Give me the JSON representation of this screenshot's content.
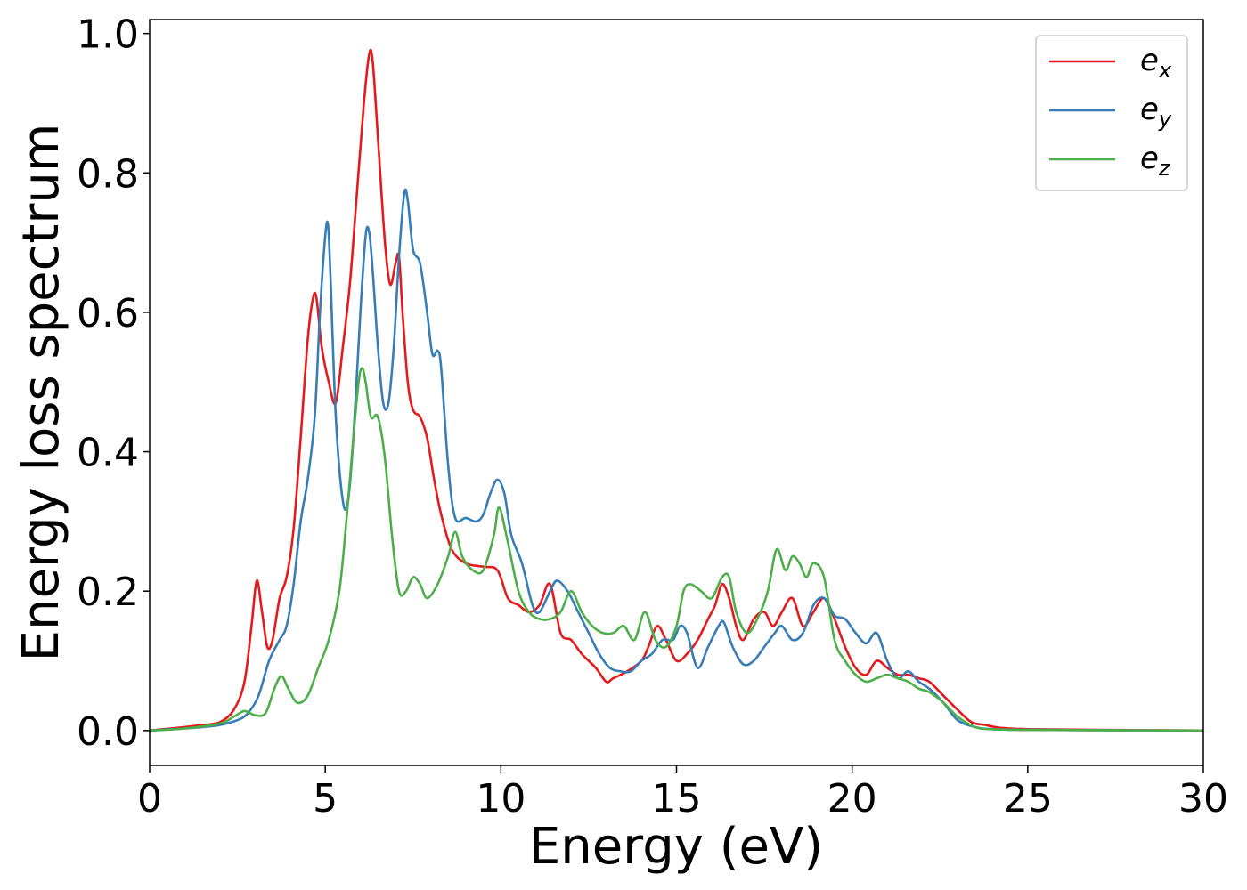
{
  "chart_data": {
    "type": "line",
    "title": "",
    "xlabel": "Energy (eV)",
    "ylabel": "Energy loss spectrum",
    "xlim": [
      0,
      30
    ],
    "ylim": [
      -0.05,
      1.02
    ],
    "xticks": [
      0,
      5,
      10,
      15,
      20,
      25,
      30
    ],
    "yticks": [
      0.0,
      0.2,
      0.4,
      0.6,
      0.8,
      1.0
    ],
    "xtick_labels": [
      "0",
      "5",
      "10",
      "15",
      "20",
      "25",
      "30"
    ],
    "ytick_labels": [
      "0.0",
      "0.2",
      "0.4",
      "0.6",
      "0.8",
      "1.0"
    ],
    "grid": false,
    "legend_position": "top-right",
    "series": [
      {
        "name": "e",
        "subscript": "x",
        "color": "#e41a1c",
        "x": [
          0,
          1,
          1.5,
          2,
          2.4,
          2.7,
          2.9,
          3.05,
          3.2,
          3.35,
          3.5,
          3.7,
          3.9,
          4.1,
          4.3,
          4.5,
          4.65,
          4.75,
          4.9,
          5.1,
          5.3,
          5.5,
          5.7,
          5.9,
          6.1,
          6.25,
          6.35,
          6.5,
          6.7,
          6.85,
          7.0,
          7.1,
          7.2,
          7.35,
          7.5,
          7.7,
          7.9,
          8.1,
          8.3,
          8.6,
          9.0,
          9.5,
          9.9,
          10.2,
          10.5,
          10.8,
          11.1,
          11.4,
          11.7,
          12.0,
          12.3,
          12.7,
          13.0,
          13.2,
          13.6,
          14.0,
          14.2,
          14.45,
          14.7,
          15.0,
          15.3,
          15.6,
          15.9,
          16.1,
          16.3,
          16.5,
          16.7,
          16.9,
          17.2,
          17.5,
          17.75,
          18.0,
          18.3,
          18.6,
          18.9,
          19.2,
          19.5,
          19.8,
          20.1,
          20.4,
          20.7,
          21.0,
          21.3,
          21.6,
          21.9,
          22.2,
          22.6,
          23.0,
          23.4,
          23.8,
          24.2,
          25,
          27,
          30
        ],
        "y": [
          0.0,
          0.005,
          0.008,
          0.012,
          0.03,
          0.07,
          0.15,
          0.215,
          0.17,
          0.12,
          0.13,
          0.19,
          0.22,
          0.29,
          0.42,
          0.56,
          0.62,
          0.62,
          0.55,
          0.5,
          0.47,
          0.55,
          0.64,
          0.77,
          0.9,
          0.97,
          0.96,
          0.85,
          0.7,
          0.64,
          0.67,
          0.68,
          0.6,
          0.5,
          0.46,
          0.45,
          0.42,
          0.36,
          0.31,
          0.26,
          0.24,
          0.235,
          0.23,
          0.19,
          0.18,
          0.17,
          0.18,
          0.21,
          0.14,
          0.13,
          0.11,
          0.09,
          0.07,
          0.075,
          0.085,
          0.1,
          0.12,
          0.15,
          0.13,
          0.1,
          0.11,
          0.13,
          0.16,
          0.18,
          0.21,
          0.19,
          0.15,
          0.13,
          0.16,
          0.17,
          0.15,
          0.17,
          0.19,
          0.15,
          0.17,
          0.19,
          0.16,
          0.12,
          0.09,
          0.08,
          0.1,
          0.09,
          0.08,
          0.08,
          0.075,
          0.07,
          0.05,
          0.03,
          0.012,
          0.008,
          0.004,
          0.002,
          0.001,
          0.0
        ]
      },
      {
        "name": "e",
        "subscript": "y",
        "color": "#377eb8",
        "x": [
          0,
          1,
          1.5,
          2,
          2.5,
          2.8,
          3.1,
          3.4,
          3.7,
          3.9,
          4.1,
          4.3,
          4.5,
          4.7,
          4.85,
          5.0,
          5.08,
          5.15,
          5.3,
          5.5,
          5.65,
          5.8,
          6.0,
          6.15,
          6.25,
          6.35,
          6.5,
          6.65,
          6.8,
          6.95,
          7.1,
          7.25,
          7.35,
          7.5,
          7.7,
          7.9,
          8.05,
          8.2,
          8.3,
          8.5,
          8.7,
          9.0,
          9.3,
          9.5,
          9.7,
          9.9,
          10.1,
          10.3,
          10.6,
          10.9,
          11.1,
          11.4,
          11.6,
          11.9,
          12.2,
          12.5,
          12.8,
          13.1,
          13.4,
          13.7,
          14.0,
          14.3,
          14.6,
          14.9,
          15.1,
          15.3,
          15.6,
          15.9,
          16.2,
          16.35,
          16.6,
          16.9,
          17.2,
          17.5,
          17.8,
          18.0,
          18.3,
          18.6,
          18.9,
          19.2,
          19.5,
          19.8,
          20.1,
          20.4,
          20.7,
          21.0,
          21.3,
          21.6,
          21.9,
          22.2,
          22.6,
          23.0,
          23.5,
          24.0,
          25,
          27,
          30
        ],
        "y": [
          0.0,
          0.003,
          0.005,
          0.008,
          0.015,
          0.025,
          0.05,
          0.1,
          0.13,
          0.15,
          0.21,
          0.3,
          0.36,
          0.45,
          0.6,
          0.71,
          0.725,
          0.65,
          0.45,
          0.33,
          0.33,
          0.42,
          0.6,
          0.71,
          0.715,
          0.66,
          0.55,
          0.47,
          0.47,
          0.55,
          0.68,
          0.77,
          0.76,
          0.69,
          0.67,
          0.6,
          0.54,
          0.545,
          0.52,
          0.38,
          0.305,
          0.305,
          0.3,
          0.31,
          0.34,
          0.36,
          0.34,
          0.28,
          0.24,
          0.18,
          0.17,
          0.2,
          0.215,
          0.2,
          0.17,
          0.14,
          0.11,
          0.09,
          0.085,
          0.085,
          0.1,
          0.11,
          0.13,
          0.13,
          0.15,
          0.14,
          0.09,
          0.12,
          0.15,
          0.155,
          0.12,
          0.095,
          0.1,
          0.12,
          0.14,
          0.15,
          0.13,
          0.14,
          0.18,
          0.19,
          0.165,
          0.16,
          0.14,
          0.125,
          0.14,
          0.1,
          0.075,
          0.085,
          0.07,
          0.06,
          0.04,
          0.015,
          0.005,
          0.002,
          0.001,
          0.0005,
          0.0
        ]
      },
      {
        "name": "e",
        "subscript": "z",
        "color": "#4daf4a",
        "x": [
          0,
          1,
          2,
          2.4,
          2.7,
          3.0,
          3.3,
          3.55,
          3.75,
          3.95,
          4.2,
          4.5,
          4.8,
          5.1,
          5.4,
          5.6,
          5.8,
          5.95,
          6.05,
          6.15,
          6.3,
          6.5,
          6.7,
          6.9,
          7.1,
          7.3,
          7.5,
          7.7,
          7.9,
          8.2,
          8.5,
          8.7,
          8.9,
          9.2,
          9.5,
          9.8,
          9.95,
          10.2,
          10.5,
          10.8,
          11.1,
          11.4,
          11.7,
          12.0,
          12.3,
          12.6,
          12.9,
          13.2,
          13.5,
          13.8,
          14.1,
          14.4,
          14.7,
          15.0,
          15.2,
          15.4,
          15.7,
          16.0,
          16.3,
          16.5,
          16.7,
          17.0,
          17.3,
          17.6,
          17.85,
          18.1,
          18.3,
          18.5,
          18.7,
          18.9,
          19.2,
          19.5,
          19.8,
          20.1,
          20.4,
          20.7,
          21.0,
          21.3,
          21.6,
          21.9,
          22.2,
          22.6,
          23.0,
          23.5,
          24.0,
          25,
          27,
          30
        ],
        "y": [
          0.0,
          0.003,
          0.01,
          0.02,
          0.028,
          0.022,
          0.025,
          0.06,
          0.078,
          0.06,
          0.04,
          0.05,
          0.09,
          0.13,
          0.2,
          0.3,
          0.42,
          0.5,
          0.52,
          0.5,
          0.45,
          0.45,
          0.39,
          0.28,
          0.2,
          0.2,
          0.22,
          0.21,
          0.19,
          0.21,
          0.25,
          0.285,
          0.25,
          0.23,
          0.23,
          0.28,
          0.32,
          0.27,
          0.2,
          0.17,
          0.16,
          0.16,
          0.17,
          0.2,
          0.17,
          0.15,
          0.14,
          0.14,
          0.15,
          0.13,
          0.17,
          0.13,
          0.12,
          0.15,
          0.2,
          0.21,
          0.2,
          0.19,
          0.22,
          0.22,
          0.17,
          0.14,
          0.16,
          0.2,
          0.26,
          0.23,
          0.25,
          0.24,
          0.22,
          0.24,
          0.22,
          0.13,
          0.1,
          0.08,
          0.07,
          0.075,
          0.08,
          0.075,
          0.07,
          0.06,
          0.055,
          0.04,
          0.02,
          0.005,
          0.002,
          0.001,
          0.0005,
          0.0
        ]
      }
    ]
  }
}
